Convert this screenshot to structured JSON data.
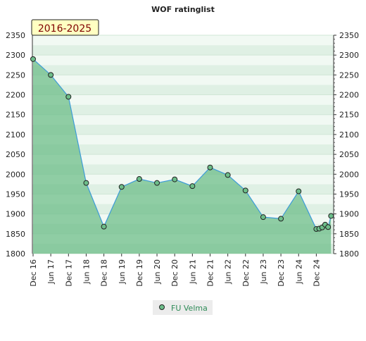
{
  "chart_data": {
    "type": "area",
    "title": "WOF ratinglist",
    "period_badge": "2016-2025",
    "xlabel": "",
    "ylabel": "",
    "ylim": [
      1800,
      2350
    ],
    "y_ticks": [
      1800,
      1850,
      1900,
      1950,
      2000,
      2050,
      2100,
      2150,
      2200,
      2250,
      2300,
      2350
    ],
    "x_ticks": [
      "Dec 16",
      "Jun 17",
      "Dec 17",
      "Jun 18",
      "Dec 18",
      "Jun 19",
      "Dec 19",
      "Jun 20",
      "Dec 20",
      "Jun 21",
      "Dec 21",
      "Jun 22",
      "Dec 22",
      "Jun 23",
      "Dec 23",
      "Jun 24",
      "Dec 24"
    ],
    "grid": true,
    "legend_position": "bottom-center",
    "series": [
      {
        "name": "FU Velma",
        "color": "#3d9bd8",
        "fill": "#6dbe8a",
        "points": [
          {
            "x": "2016-12",
            "y": 2290
          },
          {
            "x": "2017-06",
            "y": 2250
          },
          {
            "x": "2017-12",
            "y": 2195
          },
          {
            "x": "2018-06",
            "y": 1978
          },
          {
            "x": "2018-12",
            "y": 1868
          },
          {
            "x": "2019-06",
            "y": 1968
          },
          {
            "x": "2019-12",
            "y": 1988
          },
          {
            "x": "2020-06",
            "y": 1978
          },
          {
            "x": "2020-12",
            "y": 1987
          },
          {
            "x": "2021-06",
            "y": 1970
          },
          {
            "x": "2021-12",
            "y": 2017
          },
          {
            "x": "2022-06",
            "y": 1998
          },
          {
            "x": "2022-12",
            "y": 1959
          },
          {
            "x": "2023-06",
            "y": 1892
          },
          {
            "x": "2023-12",
            "y": 1888
          },
          {
            "x": "2024-06",
            "y": 1957
          },
          {
            "x": "2024-12",
            "y": 1862
          },
          {
            "x": "2025-01",
            "y": 1863
          },
          {
            "x": "2025-02",
            "y": 1866
          },
          {
            "x": "2025-03",
            "y": 1873
          },
          {
            "x": "2025-04",
            "y": 1867
          },
          {
            "x": "2025-05",
            "y": 1895
          }
        ]
      }
    ]
  }
}
